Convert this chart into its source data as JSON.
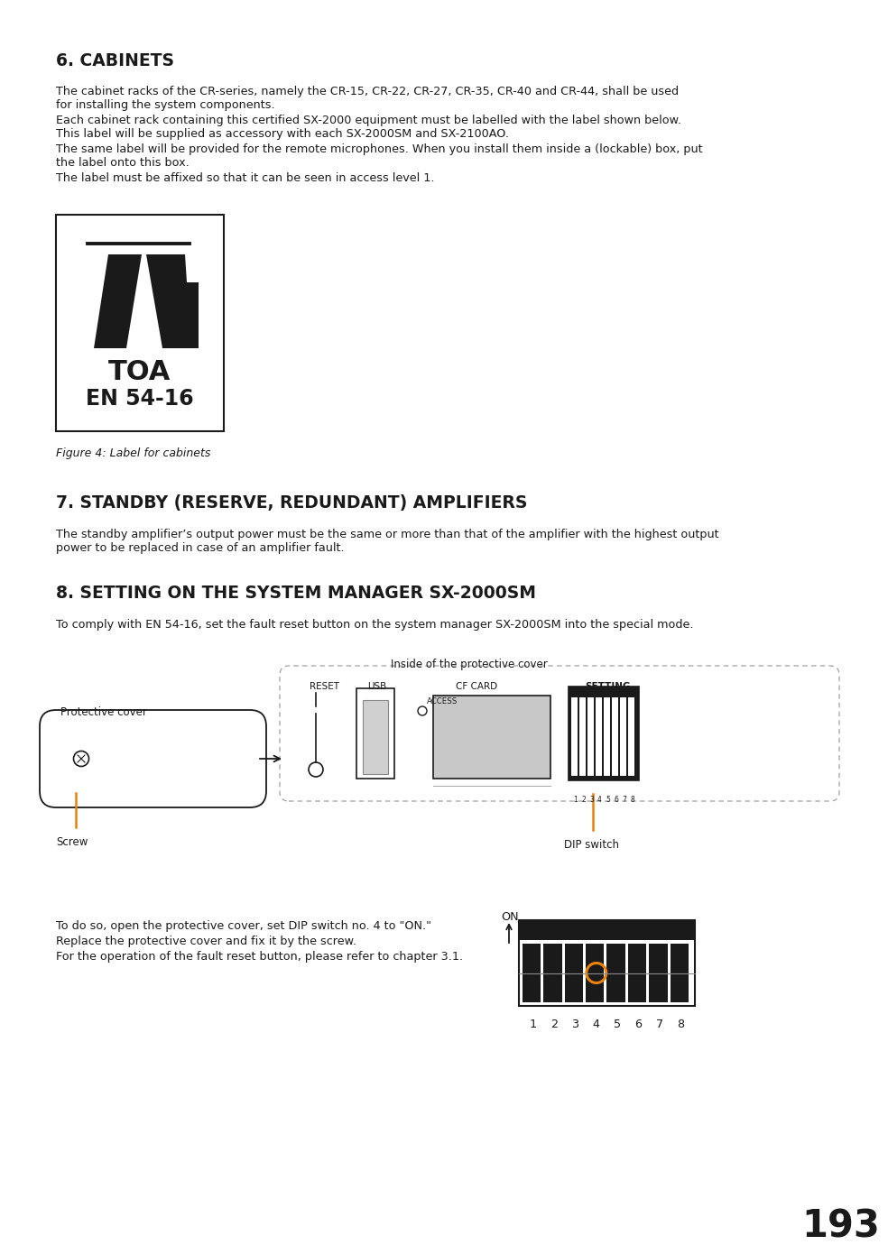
{
  "section1_title": "6. CABINETS",
  "section2_title": "7. STANDBY (RESERVE, REDUNDANT) AMPLIFIERS",
  "section3_title": "8. SETTING ON THE SYSTEM MANAGER SX-2000SM",
  "section1_body1": "The cabinet racks of the CR-series, namely the CR-15, CR-22, CR-27, CR-35, CR-40 and CR-44, shall be used",
  "section1_body1b": "for installing the system components.",
  "section1_body2": "Each cabinet rack containing this certified SX-2000 equipment must be labelled with the label shown below.",
  "section1_body2b": "This label will be supplied as accessory with each SX-2000SM and SX-2100AO.",
  "section1_body3": "The same label will be provided for the remote microphones. When you install them inside a (lockable) box, put",
  "section1_body3b": "the label onto this box.",
  "section1_body4": "The label must be affixed so that it can be seen in access level 1.",
  "figure_caption": "Figure 4: Label for cabinets",
  "toa_text": "TOA",
  "en_text": "EN 54-16",
  "section2_body": "The standby amplifier’s output power must be the same or more than that of the amplifier with the highest output",
  "section2_body2": "power to be replaced in case of an amplifier fault.",
  "section3_body": "To comply with EN 54-16, set the fault reset button on the system manager SX-2000SM into the special mode.",
  "inside_label": "Inside of the protective cover",
  "protective_cover_label": "Protective cover",
  "reset_label": "RESET",
  "usb_label": "USB",
  "access_label": "ACCESS",
  "cfcard_label": "CF CARD",
  "on_label": "ON",
  "setting_label": "SETTING",
  "screw_label": "Screw",
  "dip_label": "DIP switch",
  "bottom_text1": "To do so, open the protective cover, set DIP switch no. 4 to \"ON.\"",
  "bottom_text2": "Replace the protective cover and fix it by the screw.",
  "bottom_text3": "For the operation of the fault reset button, please refer to chapter 3.1.",
  "on_label2": "ON",
  "page_number": "193",
  "orange_color": "#E8820C",
  "dark_color": "#1a1a1a",
  "bg_color": "#ffffff",
  "gray_color": "#aaaaaa"
}
